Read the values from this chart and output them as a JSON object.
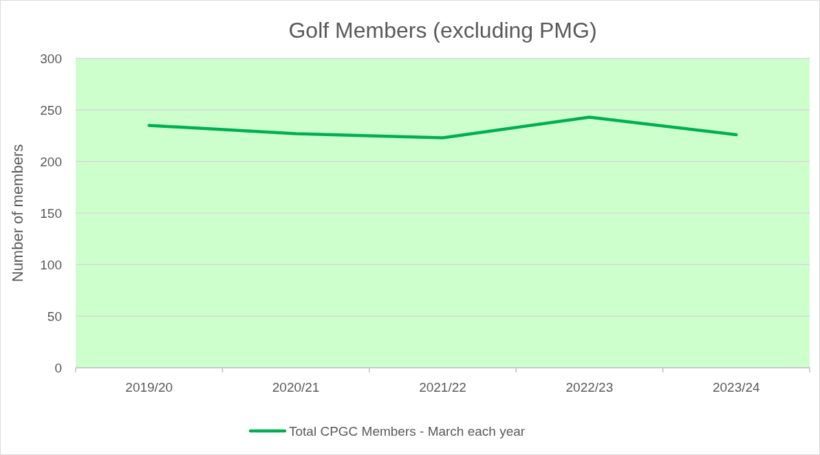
{
  "chart_data": {
    "type": "line",
    "title": "Golf Members (excluding PMG)",
    "ylabel": "Number of members",
    "categories": [
      "2019/20",
      "2020/21",
      "2021/22",
      "2022/23",
      "2023/24"
    ],
    "series": [
      {
        "name": "Total CPGC Members - March each year",
        "color": "#00b050",
        "values": [
          235,
          227,
          223,
          243,
          226
        ]
      }
    ],
    "ylim": [
      0,
      300
    ],
    "yticks": [
      0,
      50,
      100,
      150,
      200,
      250,
      300
    ],
    "grid": "y",
    "legend": "bottom",
    "marker": "none",
    "line_style": "solid"
  }
}
